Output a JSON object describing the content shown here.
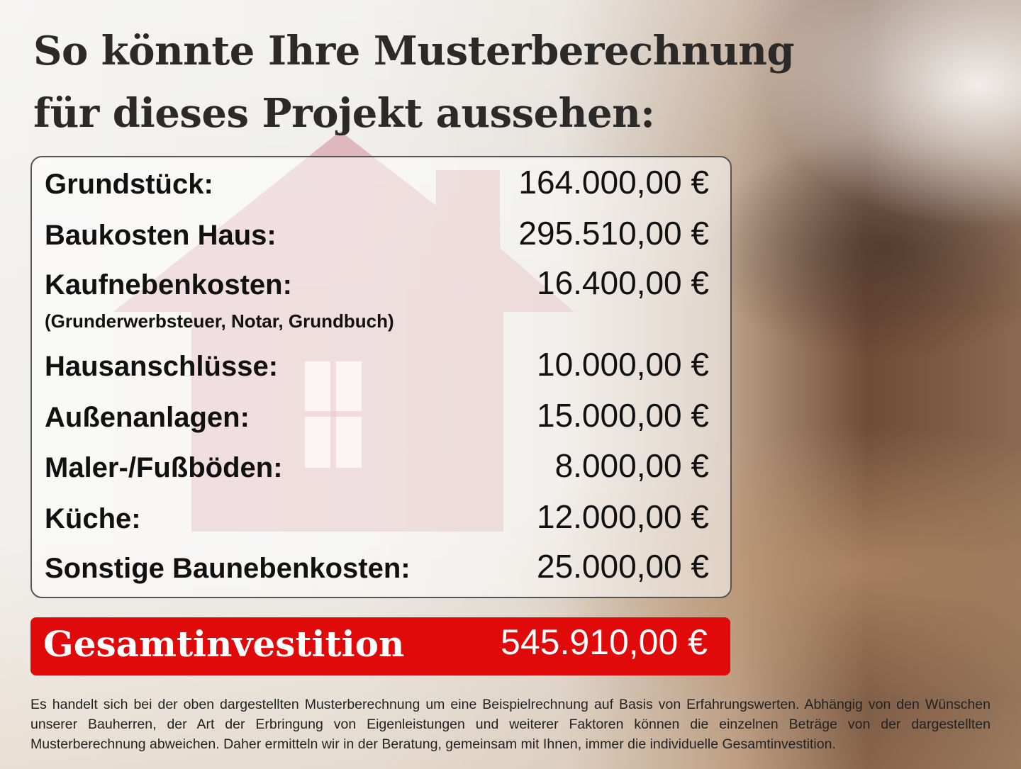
{
  "title": {
    "line1": "So könnte Ihre Musterberechnung",
    "line2": "für dieses Projekt aussehen:"
  },
  "items": [
    {
      "label": "Grundstück:",
      "value": "164.000,00 €"
    },
    {
      "label": "Baukosten Haus:",
      "value": "295.510,00 €"
    },
    {
      "label": "Kaufnebenkosten:",
      "value": "16.400,00 €",
      "note": "(Grunderwerbsteuer, Notar, Grundbuch)"
    },
    {
      "label": "Hausanschlüsse:",
      "value": "10.000,00 €"
    },
    {
      "label": "Außenanlagen:",
      "value": "15.000,00 €"
    },
    {
      "label": "Maler-/Fußböden:",
      "value": "8.000,00 €"
    },
    {
      "label": "Küche:",
      "value": "12.000,00 €"
    },
    {
      "label": "Sonstige Baunebenkosten:",
      "value": "25.000,00 €"
    }
  ],
  "total": {
    "label": "Gesamtinvestition",
    "value": "545.910,00 €"
  },
  "disclaimer": "Es handelt sich bei der oben dargestellten Musterberechnung um eine Beispielrechnung auf Basis von Erfahrungswerten. Abhängig von den Wünschen unserer Bauherren, der Art der Erbringung von Eigenleistungen und weiterer Faktoren können die einzelnen Beträge von der dargestellten Musterberechnung abweichen. Daher ermitteln wir in der Beratung, gemeinsam mit Ihnen, immer die individuelle Gesamtinvestition.",
  "colors": {
    "accent": "#e10a0a",
    "house": "#d9a3a8"
  }
}
